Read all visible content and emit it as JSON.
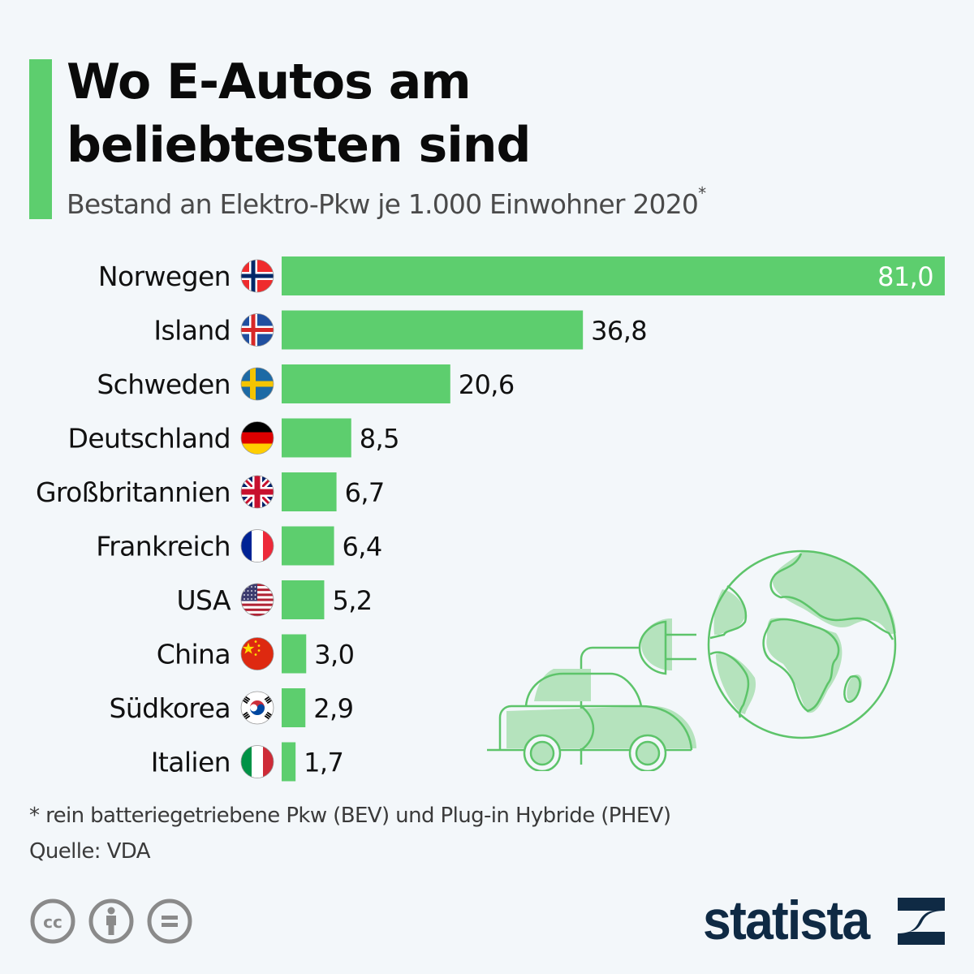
{
  "header": {
    "title_line1": "Wo E-Autos am",
    "title_line2": "beliebtesten sind",
    "subtitle": "Bestand an Elektro-Pkw je 1.000 Einwohner 2020",
    "subtitle_mark": "*"
  },
  "colors": {
    "accent": "#5dce6e",
    "bar": "#5dce6e",
    "background": "#f3f7fa",
    "brand": "#0f2a44",
    "illustration_fill": "#b5e3bd",
    "illustration_stroke": "#5dc46a"
  },
  "chart_data": {
    "type": "bar",
    "orientation": "horizontal",
    "title": "Wo E-Autos am beliebtesten sind",
    "subtitle": "Bestand an Elektro-Pkw je 1.000 Einwohner 2020*",
    "xlabel": "",
    "ylabel": "",
    "xlim": [
      0,
      81
    ],
    "grid": false,
    "legend": "none",
    "categories": [
      "Norwegen",
      "Island",
      "Schweden",
      "Deutschland",
      "Großbritannien",
      "Frankreich",
      "USA",
      "China",
      "Südkorea",
      "Italien"
    ],
    "flags": [
      "norway-flag-icon",
      "iceland-flag-icon",
      "sweden-flag-icon",
      "germany-flag-icon",
      "uk-flag-icon",
      "france-flag-icon",
      "usa-flag-icon",
      "china-flag-icon",
      "south-korea-flag-icon",
      "italy-flag-icon"
    ],
    "values": [
      81.0,
      36.8,
      20.6,
      8.5,
      6.7,
      6.4,
      5.2,
      3.0,
      2.9,
      1.7
    ],
    "value_labels": [
      "81,0",
      "36,8",
      "20,6",
      "8,5",
      "6,7",
      "6,4",
      "5,2",
      "3,0",
      "2,9",
      "1,7"
    ]
  },
  "footer": {
    "footnote": "* rein batteriegetriebene Pkw (BEV) und Plug-in Hybride (PHEV)",
    "source": "Quelle: VDA",
    "license_icons": [
      "creative-commons-icon",
      "attribution-icon",
      "no-derivatives-icon"
    ],
    "brand": "statista"
  }
}
